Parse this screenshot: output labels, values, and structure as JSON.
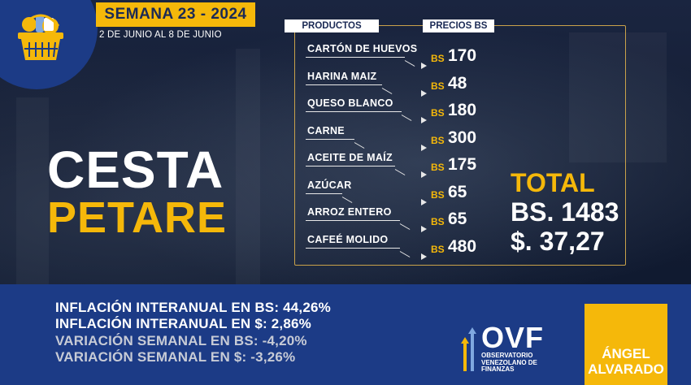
{
  "header": {
    "week_title": "SEMANA 23 - 2024",
    "dates": "2 DE JUNIO AL  8 DE JUNIO"
  },
  "title": {
    "line1": "CESTA",
    "line2": "PETARE"
  },
  "table": {
    "col_products": "PRODUCTOS",
    "col_prices": "PRECIOS BS",
    "currency_tag": "BS",
    "items": [
      {
        "name": "CARTÓN DE HUEVOS",
        "price": "170"
      },
      {
        "name": "HARINA MAIZ",
        "price": "48"
      },
      {
        "name": "QUESO BLANCO",
        "price": "180"
      },
      {
        "name": "CARNE",
        "price": "300"
      },
      {
        "name": "ACEITE DE MAÍZ",
        "price": "175"
      },
      {
        "name": "AZÚCAR",
        "price": "65"
      },
      {
        "name": "ARROZ ENTERO",
        "price": "65"
      },
      {
        "name": "CAFEÉ MOLIDO",
        "price": "480"
      }
    ]
  },
  "total": {
    "label": "TOTAL",
    "bs": "BS. 1483",
    "usd": "$. 37,27"
  },
  "stats": [
    "INFLACIÓN INTERANUAL EN BS: 44,26%",
    "INFLACIÓN INTERANUAL EN $: 2,86%",
    "VARIACIÓN SEMANAL EN BS: -4,20%",
    "VARIACIÓN SEMANAL EN $: -3,26%"
  ],
  "brand": {
    "name": "OVF",
    "subtitle_1": "OBSERVATORIO",
    "subtitle_2": "VENEZOLANO DE",
    "subtitle_3": "FINANZAS"
  },
  "author": {
    "first": "ÁNGEL",
    "last": "ALVARADO"
  },
  "colors": {
    "accent": "#f5b80a",
    "navy": "#1c3b86",
    "dark": "#141d33"
  }
}
